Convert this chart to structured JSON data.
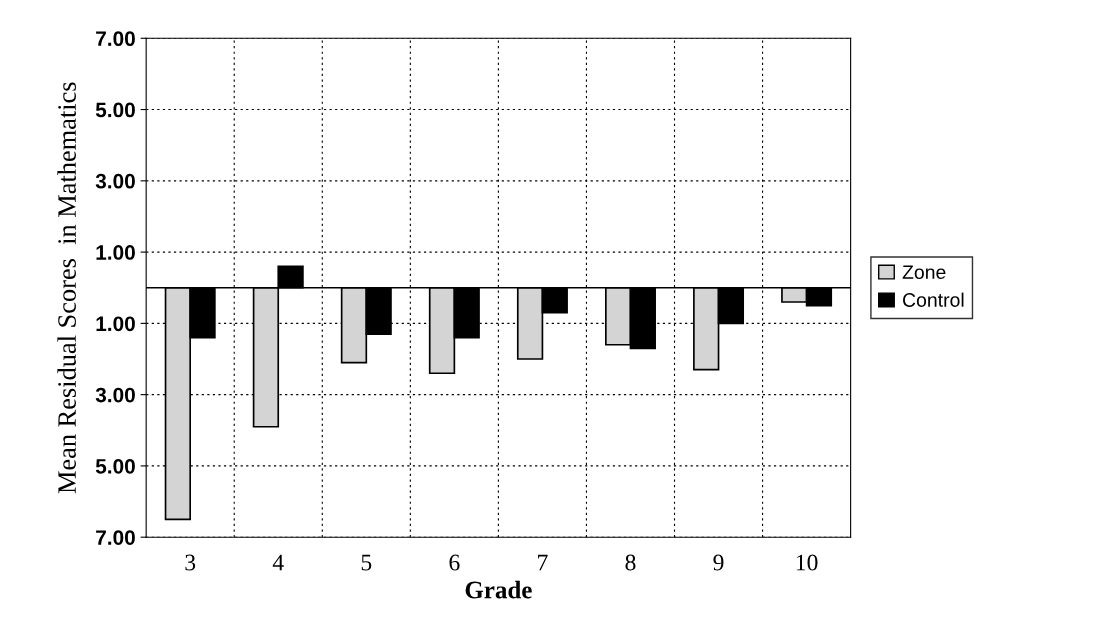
{
  "chart_data": {
    "type": "bar",
    "xlabel": "Grade",
    "ylabel": "Mean Residual Scores  in Mathematics",
    "categories": [
      "3",
      "4",
      "5",
      "6",
      "7",
      "8",
      "9",
      "10"
    ],
    "series": [
      {
        "name": "Zone",
        "color": "#d4d4d4",
        "values": [
          -6.5,
          -3.9,
          -2.1,
          -2.4,
          -2.0,
          -1.6,
          -2.3,
          -0.4
        ]
      },
      {
        "name": "Control",
        "color": "#000000",
        "values": [
          -1.4,
          0.6,
          -1.3,
          -1.4,
          -0.7,
          -1.7,
          -1.0,
          -0.5
        ]
      }
    ],
    "ylim": [
      -7,
      7
    ],
    "yticks": [
      {
        "value": -7,
        "label": "7.00"
      },
      {
        "value": -5,
        "label": "5.00"
      },
      {
        "value": -3,
        "label": "3.00"
      },
      {
        "value": -1,
        "label": "1.00"
      },
      {
        "value": 1,
        "label": "1.00"
      },
      {
        "value": 3,
        "label": "3.00"
      },
      {
        "value": 5,
        "label": "5.00"
      },
      {
        "value": 7,
        "label": "7.00"
      }
    ],
    "ref_lines": [
      {
        "axis": "y",
        "value": 0,
        "label": null,
        "color": "#000000"
      }
    ],
    "grid": true,
    "legend": "right"
  }
}
